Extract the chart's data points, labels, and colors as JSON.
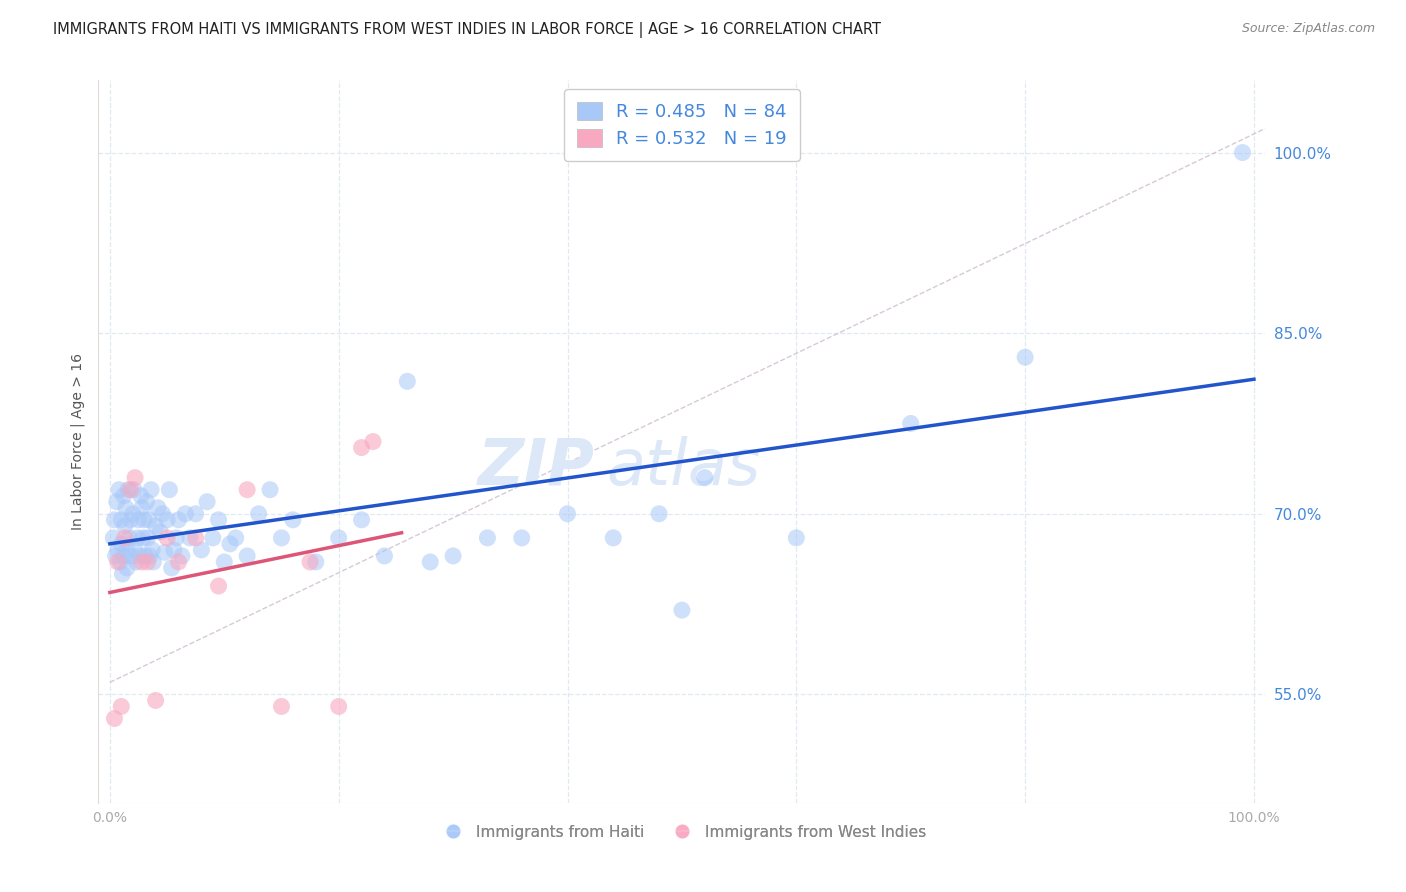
{
  "title": "IMMIGRANTS FROM HAITI VS IMMIGRANTS FROM WEST INDIES IN LABOR FORCE | AGE > 16 CORRELATION CHART",
  "source_text": "Source: ZipAtlas.com",
  "ylabel": "In Labor Force | Age > 16",
  "xlim": [
    -0.01,
    1.01
  ],
  "ylim": [
    0.46,
    1.06
  ],
  "yticks": [
    0.55,
    0.7,
    0.85,
    1.0
  ],
  "ytick_labels": [
    "55.0%",
    "70.0%",
    "85.0%",
    "100.0%"
  ],
  "xtick_vals": [
    0.0,
    0.2,
    0.4,
    0.6,
    0.8,
    1.0
  ],
  "xtick_labels": [
    "0.0%",
    "",
    "",
    "",
    "",
    "100.0%"
  ],
  "haiti_color": "#A8C8F8",
  "west_indies_color": "#F8A8C0",
  "blue_line_color": "#2255CC",
  "pink_line_color": "#DD5577",
  "ref_line_color": "#D0C0D0",
  "watermark_zip": "ZIP",
  "watermark_atlas": "atlas",
  "watermark_color": "#DCE8F8",
  "title_color": "#222222",
  "tick_label_color": "#4488DD",
  "grid_color": "#E0E8F0",
  "background_color": "#FFFFFF",
  "legend_text_R": "#4488DD",
  "legend_text_N": "#333333",
  "haiti_R": 0.485,
  "haiti_N": 84,
  "wi_R": 0.532,
  "wi_N": 19,
  "haiti_x": [
    0.003,
    0.004,
    0.005,
    0.006,
    0.007,
    0.008,
    0.009,
    0.01,
    0.01,
    0.011,
    0.012,
    0.012,
    0.013,
    0.014,
    0.015,
    0.015,
    0.016,
    0.017,
    0.018,
    0.019,
    0.02,
    0.021,
    0.022,
    0.023,
    0.024,
    0.025,
    0.026,
    0.027,
    0.028,
    0.029,
    0.03,
    0.031,
    0.032,
    0.033,
    0.034,
    0.035,
    0.036,
    0.037,
    0.038,
    0.04,
    0.042,
    0.044,
    0.046,
    0.048,
    0.05,
    0.052,
    0.054,
    0.056,
    0.058,
    0.06,
    0.063,
    0.066,
    0.07,
    0.075,
    0.08,
    0.085,
    0.09,
    0.095,
    0.1,
    0.105,
    0.11,
    0.12,
    0.13,
    0.14,
    0.15,
    0.16,
    0.18,
    0.2,
    0.22,
    0.24,
    0.26,
    0.28,
    0.3,
    0.33,
    0.36,
    0.4,
    0.44,
    0.48,
    0.5,
    0.52,
    0.6,
    0.7,
    0.8,
    0.99
  ],
  "haiti_y": [
    0.68,
    0.695,
    0.665,
    0.71,
    0.67,
    0.72,
    0.66,
    0.675,
    0.695,
    0.65,
    0.715,
    0.665,
    0.69,
    0.705,
    0.67,
    0.655,
    0.72,
    0.68,
    0.695,
    0.665,
    0.7,
    0.72,
    0.67,
    0.66,
    0.68,
    0.695,
    0.665,
    0.715,
    0.705,
    0.68,
    0.695,
    0.665,
    0.71,
    0.68,
    0.695,
    0.665,
    0.72,
    0.67,
    0.66,
    0.69,
    0.705,
    0.685,
    0.7,
    0.668,
    0.695,
    0.72,
    0.655,
    0.67,
    0.68,
    0.695,
    0.665,
    0.7,
    0.68,
    0.7,
    0.67,
    0.71,
    0.68,
    0.695,
    0.66,
    0.675,
    0.68,
    0.665,
    0.7,
    0.72,
    0.68,
    0.695,
    0.66,
    0.68,
    0.695,
    0.665,
    0.81,
    0.66,
    0.665,
    0.68,
    0.68,
    0.7,
    0.68,
    0.7,
    0.62,
    0.73,
    0.68,
    0.775,
    0.83,
    1.0
  ],
  "wi_x": [
    0.004,
    0.007,
    0.01,
    0.013,
    0.018,
    0.022,
    0.028,
    0.033,
    0.04,
    0.05,
    0.06,
    0.075,
    0.095,
    0.12,
    0.15,
    0.175,
    0.2,
    0.22,
    0.23
  ],
  "wi_y": [
    0.53,
    0.66,
    0.54,
    0.68,
    0.72,
    0.73,
    0.66,
    0.66,
    0.545,
    0.68,
    0.66,
    0.68,
    0.64,
    0.72,
    0.54,
    0.66,
    0.54,
    0.755,
    0.76
  ]
}
